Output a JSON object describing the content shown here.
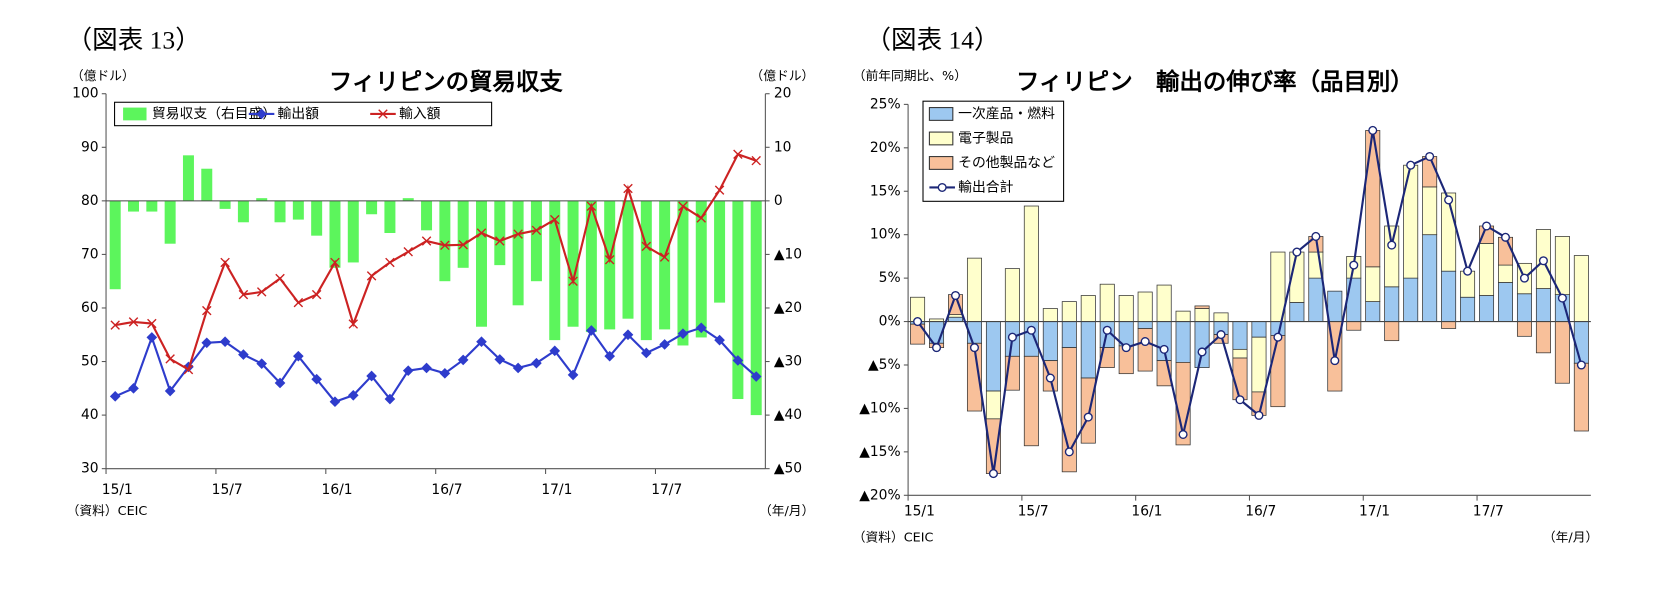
{
  "chart_data": [
    {
      "type": "combo",
      "figure_label": "（図表 13）",
      "title": "フィリピンの貿易収支",
      "left_unit": "（億ドル）",
      "right_unit": "（億ドル）",
      "x_unit": "（年/月）",
      "source": "（資料）CEIC",
      "categories": [
        "15/1",
        null,
        null,
        null,
        null,
        null,
        "15/7",
        null,
        null,
        null,
        null,
        null,
        "16/1",
        null,
        null,
        null,
        null,
        null,
        "16/7",
        null,
        null,
        null,
        null,
        null,
        "17/1",
        null,
        null,
        null,
        null,
        null,
        "17/7",
        null,
        null,
        null,
        null,
        null
      ],
      "ylim": [
        30,
        100
      ],
      "yticks": [
        30,
        40,
        50,
        60,
        70,
        80,
        90,
        100
      ],
      "y2lim": [
        -50,
        20
      ],
      "y2ticks": [
        {
          "value": -50,
          "label": "▲50"
        },
        {
          "value": -40,
          "label": "▲40"
        },
        {
          "value": -30,
          "label": "▲30"
        },
        {
          "value": -20,
          "label": "▲20"
        },
        {
          "value": -10,
          "label": "▲10"
        },
        0,
        10,
        20
      ],
      "legend": "upper left",
      "grid": false,
      "stacked": false,
      "series": [
        {
          "name": "貿易収支（右目盛）",
          "kind": "bar",
          "axis": "y2",
          "color": "#5cf55c",
          "values": [
            -16.5,
            -2,
            -2,
            -8,
            8.5,
            6,
            -1.5,
            -4,
            0.5,
            -4,
            -3.5,
            -6.5,
            -12.5,
            -11.5,
            -2.5,
            -6,
            0.5,
            -5.5,
            -15,
            -12.5,
            -23.5,
            -12,
            -19.5,
            -15,
            -26,
            -23.5,
            -24.5,
            -24,
            -22,
            -26,
            -24,
            -27,
            -25.5,
            -19,
            -37,
            -40
          ]
        },
        {
          "name": "輸出額",
          "kind": "line",
          "marker": "diamond",
          "color": "#2e3ccc",
          "values": [
            43.5,
            45,
            54.5,
            44.5,
            49,
            53.5,
            53.7,
            51.3,
            49.6,
            46,
            51,
            46.7,
            42.5,
            43.7,
            47.3,
            43,
            48.3,
            48.8,
            47.8,
            50.3,
            53.7,
            50.4,
            48.8,
            49.7,
            52,
            47.5,
            55.8,
            51,
            55,
            51.6,
            53.2,
            55.2,
            56.3,
            54,
            50.2,
            47.2
          ]
        },
        {
          "name": "輸入額",
          "kind": "line",
          "marker": "x",
          "color": "#cc2222",
          "values": [
            56.8,
            57.4,
            57.1,
            50.5,
            48.5,
            59.5,
            68.5,
            62.5,
            63,
            65.5,
            61,
            62.5,
            68.5,
            57,
            66,
            68.5,
            70.5,
            72.5,
            71.7,
            71.8,
            74,
            72.5,
            73.8,
            74.5,
            76.5,
            65,
            79,
            69,
            82.3,
            71.5,
            69.5,
            79,
            76.8,
            82,
            88.7,
            87.5
          ]
        }
      ]
    },
    {
      "type": "combo",
      "figure_label": "（図表 14）",
      "title": "フィリピン　輸出の伸び率（品目別）",
      "left_unit": "（前年同期比、%）",
      "x_unit": "（年/月）",
      "source": "（資料）CEIC",
      "categories": [
        "15/1",
        null,
        null,
        null,
        null,
        null,
        "15/7",
        null,
        null,
        null,
        null,
        null,
        "16/1",
        null,
        null,
        null,
        null,
        null,
        "16/7",
        null,
        null,
        null,
        null,
        null,
        "17/1",
        null,
        null,
        null,
        null,
        null,
        "17/7",
        null,
        null,
        null,
        null,
        null
      ],
      "ylim": [
        -20,
        25
      ],
      "yticks": [
        {
          "value": -20,
          "label": "▲20%"
        },
        {
          "value": -15,
          "label": "▲15%"
        },
        {
          "value": -10,
          "label": "▲10%"
        },
        {
          "value": -5,
          "label": "▲5%"
        },
        {
          "value": 0,
          "label": "0%"
        },
        {
          "value": 5,
          "label": "5%"
        },
        {
          "value": 10,
          "label": "10%"
        },
        {
          "value": 15,
          "label": "15%"
        },
        {
          "value": 20,
          "label": "20%"
        },
        {
          "value": 25,
          "label": "25%"
        }
      ],
      "legend": "upper left",
      "grid": false,
      "stacked": true,
      "series": [
        {
          "name": "一次産品・燃料",
          "kind": "bar",
          "color": "#9dc8f0",
          "values": [
            -0.3,
            -2.5,
            0.5,
            -2.5,
            -8,
            -4,
            -4,
            -4.5,
            -3,
            -6.5,
            -3,
            -2.8,
            -0.8,
            -4.5,
            -4.7,
            -5.3,
            -1.5,
            -3.2,
            -1.8,
            -1.6,
            2.2,
            5,
            3.5,
            5,
            2.3,
            4,
            5,
            10,
            5.8,
            2.8,
            3,
            4.5,
            3.2,
            3.8,
            3.1,
            -4.8
          ]
        },
        {
          "name": "電子製品",
          "kind": "bar",
          "color": "#ffffcc",
          "values": [
            2.8,
            0.3,
            0.3,
            7.3,
            -3.2,
            6.1,
            13.3,
            1.5,
            2.3,
            3,
            4.3,
            3,
            3.4,
            4.2,
            1.2,
            1.5,
            1,
            -1,
            -6.3,
            8,
            5.8,
            3,
            0,
            2.5,
            4,
            7,
            13,
            5.5,
            9,
            3,
            6,
            2,
            3.5,
            6.8,
            6.7,
            7.6
          ]
        },
        {
          "name": "その他製品など",
          "kind": "bar",
          "color": "#f8c09a",
          "values": [
            -2.3,
            -0.5,
            2.3,
            -7.8,
            -6.3,
            -3.9,
            -10.3,
            -3.5,
            -14.3,
            -7.5,
            -2.3,
            -3.2,
            -4.9,
            -2.9,
            -9.5,
            0.3,
            -1,
            -4.8,
            -2.7,
            -8.2,
            0,
            1.8,
            -8,
            -1,
            15.7,
            -2.2,
            0,
            3.5,
            -0.8,
            0,
            2,
            3.2,
            -1.7,
            -3.6,
            -7.1,
            -7.8
          ]
        },
        {
          "name": "輸出合計",
          "kind": "line",
          "marker": "circle",
          "color": "#1c2777",
          "values": [
            0,
            -3,
            3,
            -3,
            -17.5,
            -1.8,
            -1,
            -6.5,
            -15,
            -11,
            -1,
            -3,
            -2.3,
            -3.2,
            -13,
            -3.5,
            -1.5,
            -9,
            -10.8,
            -1.8,
            8,
            9.8,
            -4.5,
            6.5,
            22,
            8.8,
            18,
            19,
            14,
            5.8,
            11,
            9.7,
            5,
            7,
            2.7,
            -5
          ]
        }
      ]
    }
  ]
}
